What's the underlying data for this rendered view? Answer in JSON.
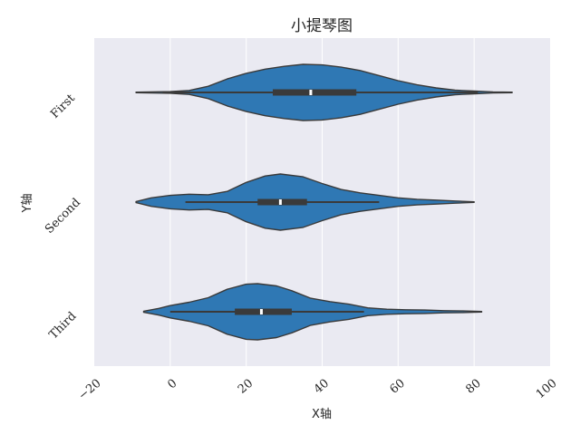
{
  "chart_data": {
    "type": "violin",
    "orientation": "horizontal",
    "title": "小提琴图",
    "xlabel": "X轴",
    "ylabel": "Y轴",
    "xlim": [
      -20,
      100
    ],
    "x_ticks": [
      -20,
      0,
      20,
      40,
      60,
      80,
      100
    ],
    "grid": true,
    "color": "#2f78b4",
    "background": "#eaeaf2",
    "categories": [
      "First",
      "Second",
      "Third"
    ],
    "series": [
      {
        "category": "First",
        "min": -9,
        "q1": 27,
        "median": 37,
        "q3": 49,
        "max": 90,
        "whisker_low": -2,
        "whisker_high": 81,
        "kde": [
          [
            -9,
            0.01
          ],
          [
            0,
            0.03
          ],
          [
            5,
            0.07
          ],
          [
            10,
            0.22
          ],
          [
            15,
            0.48
          ],
          [
            20,
            0.68
          ],
          [
            25,
            0.83
          ],
          [
            30,
            0.93
          ],
          [
            35,
            1.0
          ],
          [
            40,
            0.98
          ],
          [
            45,
            0.9
          ],
          [
            50,
            0.78
          ],
          [
            55,
            0.6
          ],
          [
            60,
            0.42
          ],
          [
            65,
            0.27
          ],
          [
            70,
            0.16
          ],
          [
            75,
            0.08
          ],
          [
            80,
            0.05
          ],
          [
            85,
            0.02
          ],
          [
            90,
            0.01
          ]
        ]
      },
      {
        "category": "Second",
        "min": -9,
        "q1": 23,
        "median": 29,
        "q3": 36,
        "max": 80,
        "whisker_low": 4,
        "whisker_high": 55,
        "kde": [
          [
            -9,
            0.02
          ],
          [
            -5,
            0.15
          ],
          [
            0,
            0.24
          ],
          [
            5,
            0.28
          ],
          [
            10,
            0.26
          ],
          [
            15,
            0.38
          ],
          [
            20,
            0.7
          ],
          [
            25,
            0.93
          ],
          [
            29,
            1.0
          ],
          [
            35,
            0.9
          ],
          [
            40,
            0.66
          ],
          [
            45,
            0.45
          ],
          [
            50,
            0.33
          ],
          [
            55,
            0.24
          ],
          [
            60,
            0.15
          ],
          [
            65,
            0.1
          ],
          [
            70,
            0.07
          ],
          [
            75,
            0.04
          ],
          [
            80,
            0.01
          ]
        ]
      },
      {
        "category": "Third",
        "min": -7,
        "q1": 17,
        "median": 24,
        "q3": 32,
        "max": 82,
        "whisker_low": 0,
        "whisker_high": 51,
        "kde": [
          [
            -7,
            0.02
          ],
          [
            -3,
            0.12
          ],
          [
            0,
            0.22
          ],
          [
            5,
            0.34
          ],
          [
            10,
            0.5
          ],
          [
            15,
            0.8
          ],
          [
            20,
            0.98
          ],
          [
            23,
            1.0
          ],
          [
            28,
            0.92
          ],
          [
            32,
            0.75
          ],
          [
            37,
            0.48
          ],
          [
            42,
            0.36
          ],
          [
            47,
            0.27
          ],
          [
            52,
            0.14
          ],
          [
            57,
            0.09
          ],
          [
            62,
            0.07
          ],
          [
            67,
            0.06
          ],
          [
            72,
            0.04
          ],
          [
            77,
            0.03
          ],
          [
            82,
            0.01
          ]
        ]
      }
    ]
  }
}
